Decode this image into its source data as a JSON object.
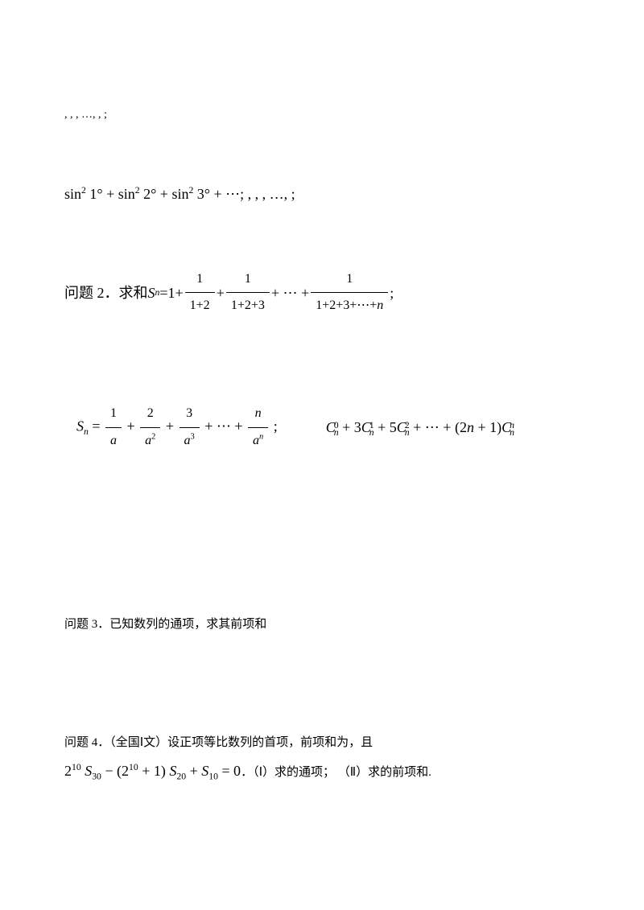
{
  "line1": {
    "text": ", , ,  …, ,   ;"
  },
  "line2": {
    "expr_prefix": "sin",
    "sq": "2",
    "deg1": "1°",
    "deg2": "2°",
    "deg3": "3°",
    "plus": " + ",
    "dots": " + ⋯",
    "suffix": ";    , , ,  …, ;"
  },
  "problem2": {
    "label": "问题 2．求和",
    "S": "S",
    "sub_n": "n",
    "eq": " = ",
    "one": "1",
    "f1_num": "1",
    "f1_den": "1+2",
    "f2_num": "1",
    "f2_den": "1+2+3",
    "dots": " + ⋯ + ",
    "f3_num": "1",
    "f3_den_prefix": "1+2+3+⋯+",
    "f3_den_n": "n",
    "semicolon": " ;"
  },
  "line4a": {
    "S": "S",
    "sub_n": "n",
    "eq": " = ",
    "t1_num": "1",
    "t1_den": "a",
    "t2_num": "2",
    "t2_den_base": "a",
    "t2_den_exp": "2",
    "t3_num": "3",
    "t3_den_base": "a",
    "t3_den_exp": "3",
    "dots": " + ⋯ + ",
    "tn_num": "n",
    "tn_den_base": "a",
    "tn_den_exp": "n",
    "semicolon": " ;"
  },
  "line4b": {
    "C": "C",
    "sup0": "0",
    "sub_n": "n",
    "plus": " + ",
    "c1_coef": "3",
    "sup1": "1",
    "c2_coef": "5",
    "sup2": "2",
    "dots": " + ⋯ + ",
    "lp": "(",
    "coef_2n1_a": "2",
    "coef_2n1_n": "n",
    "coef_2n1_b": " + 1",
    "rp": ")",
    "sup_n": "n"
  },
  "problem3": {
    "text": "问题 3．已知数列的通项，求其前项和"
  },
  "problem4": {
    "label": "问题 4．（全国Ⅰ文）设正项等比数列的首项，前项和为，且"
  },
  "line7": {
    "base2": "2",
    "exp10": "10",
    "S": "S",
    "s30": "30",
    "minus": " − ",
    "lp": "(",
    "plus1": " + 1)",
    "s20": "20",
    "plus": " + ",
    "s10": "10",
    "eq0": " = 0",
    "period": "．（Ⅰ）求的通项；  （Ⅱ）求的前项和."
  }
}
